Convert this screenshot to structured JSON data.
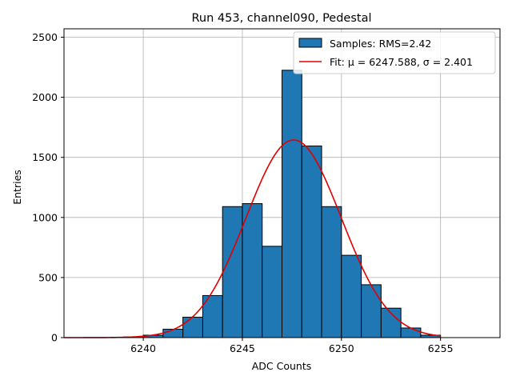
{
  "chart_data": {
    "type": "bar",
    "title": "Run 453, channel090, Pedestal",
    "xlabel": "ADC Counts",
    "ylabel": "Entries",
    "xlim": [
      6236.0,
      6258.0
    ],
    "ylim": [
      0,
      2570
    ],
    "xticks": [
      6240,
      6245,
      6250,
      6255
    ],
    "yticks": [
      0,
      500,
      1000,
      1500,
      2000,
      2500
    ],
    "grid": true,
    "legend_position": "top-right",
    "histogram": {
      "name": "Samples: RMS=2.42",
      "color": "#1f77b4",
      "bin_width": 1,
      "bin_start": [
        6239,
        6240,
        6241,
        6242,
        6243,
        6244,
        6245,
        6246,
        6247,
        6248,
        6249,
        6250,
        6251,
        6252,
        6253,
        6254
      ],
      "values": [
        5,
        20,
        70,
        170,
        350,
        1090,
        1115,
        760,
        2225,
        1595,
        1090,
        685,
        440,
        245,
        80,
        20
      ]
    },
    "fit": {
      "name": "Fit: μ = 6247.588, σ = 2.401",
      "color": "#e00000",
      "mu": 6247.588,
      "sigma": 2.401,
      "amplitude": 1645,
      "x_range": [
        6236,
        6255
      ]
    }
  }
}
